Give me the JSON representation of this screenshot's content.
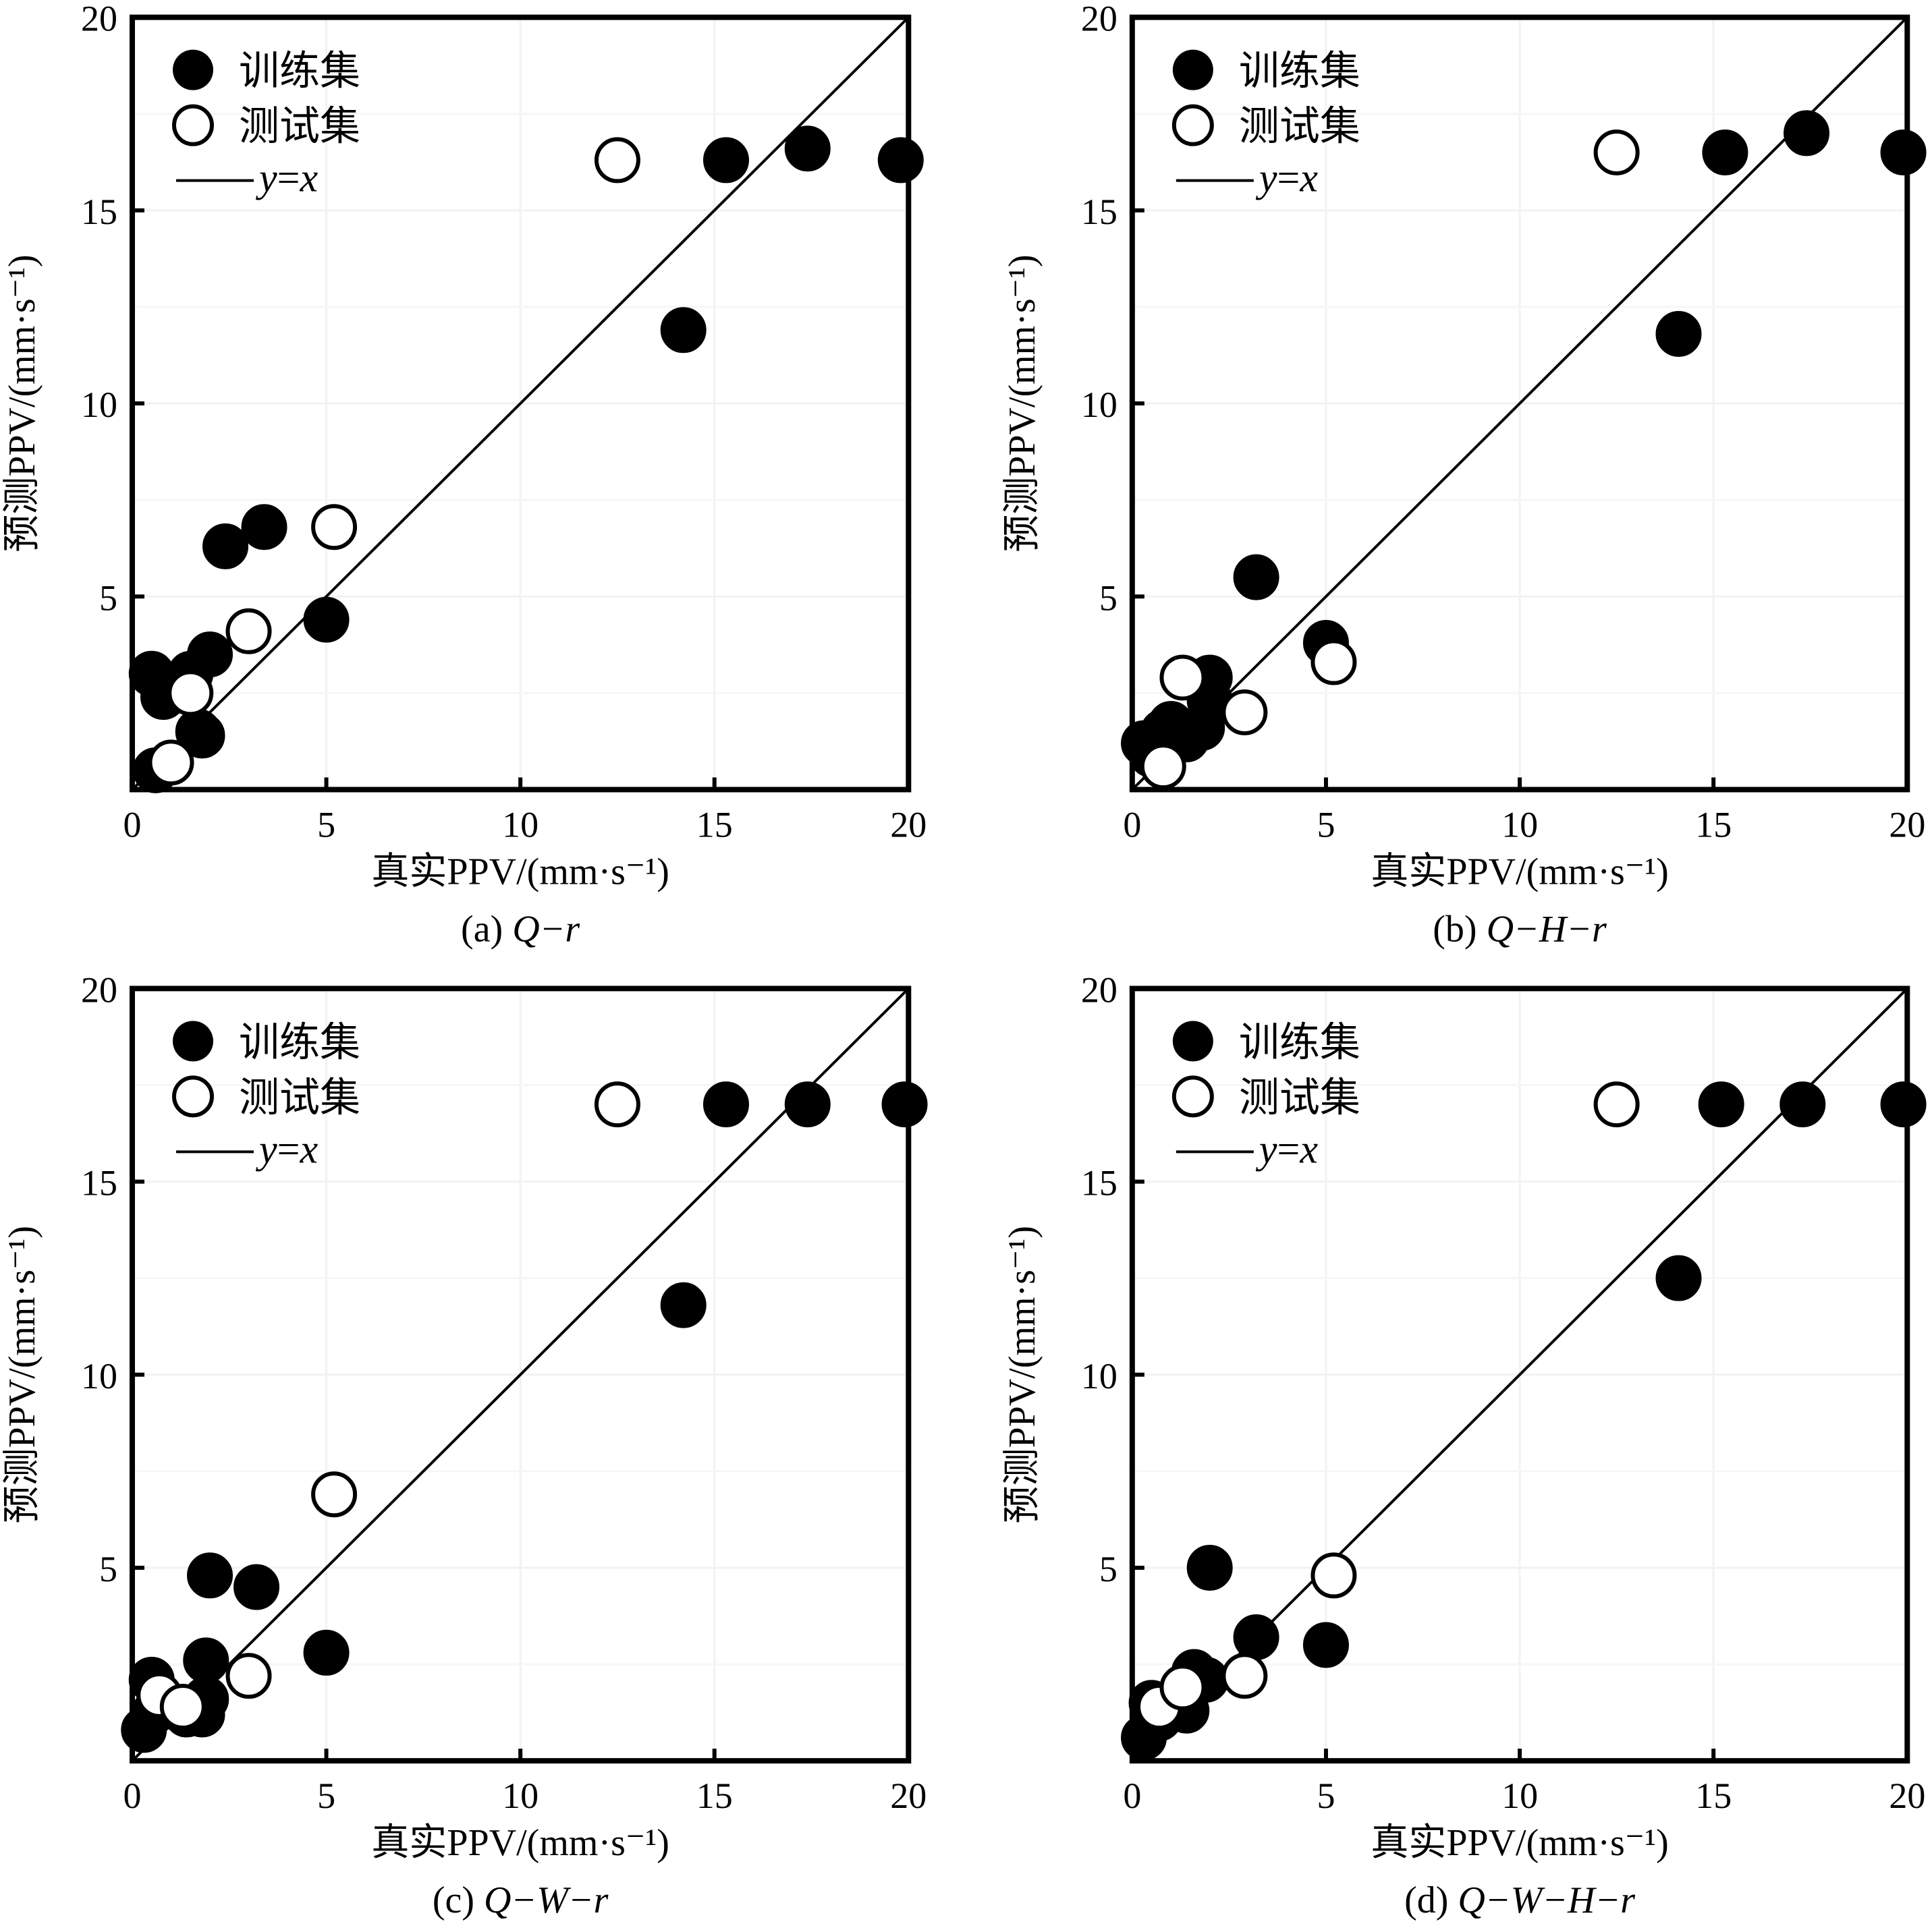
{
  "figure": {
    "legend": {
      "train_label": "训练集",
      "test_label": "测试集",
      "line_label_y": "y",
      "line_label_eq": "=",
      "line_label_x": "x"
    },
    "colors": {
      "train_fill": "#000000",
      "test_fill": "#ffffff",
      "stroke": "#000000"
    }
  },
  "chart_data": [
    {
      "type": "scatter",
      "caption": "(a) Q−r",
      "caption_prefix": "(a) ",
      "caption_italic": "Q−r",
      "xlabel": "真实PPV/(mm·s⁻¹)",
      "ylabel": "预测PPV/(mm·s⁻¹)",
      "xlim": [
        0,
        20
      ],
      "ylim": [
        0,
        20
      ],
      "xticks": [
        "0",
        "5",
        "10",
        "15",
        "20"
      ],
      "yticks": [
        "5",
        "10",
        "15",
        "20"
      ],
      "reference_line": "y=x",
      "legend_position": "top-left",
      "series": [
        {
          "name": "训练集",
          "marker": "filled-circle",
          "points": [
            [
              0.5,
              3.0
            ],
            [
              0.6,
              0.5
            ],
            [
              0.8,
              2.4
            ],
            [
              1.5,
              3.0
            ],
            [
              1.8,
              1.4
            ],
            [
              1.7,
              1.5
            ],
            [
              2.0,
              3.5
            ],
            [
              2.4,
              6.3
            ],
            [
              3.4,
              6.8
            ],
            [
              5.0,
              4.4
            ],
            [
              14.2,
              11.9
            ],
            [
              15.3,
              16.3
            ],
            [
              17.4,
              16.6
            ],
            [
              19.8,
              16.3
            ]
          ]
        },
        {
          "name": "测试集",
          "marker": "open-circle",
          "points": [
            [
              1.0,
              0.7
            ],
            [
              1.5,
              2.5
            ],
            [
              3.0,
              4.1
            ],
            [
              5.2,
              6.8
            ],
            [
              12.5,
              16.3
            ]
          ]
        }
      ]
    },
    {
      "type": "scatter",
      "caption": "(b) Q−H−r",
      "caption_prefix": "(b) ",
      "caption_italic": "Q−H−r",
      "xlabel": "真实PPV/(mm·s⁻¹)",
      "ylabel": "预测PPV/(mm·s⁻¹)",
      "xlim": [
        0,
        20
      ],
      "ylim": [
        0,
        20
      ],
      "xticks": [
        "0",
        "5",
        "10",
        "15",
        "20"
      ],
      "yticks": [
        "5",
        "10",
        "15",
        "20"
      ],
      "reference_line": "y=x",
      "legend_position": "top-left",
      "series": [
        {
          "name": "训练集",
          "marker": "filled-circle",
          "points": [
            [
              0.3,
              1.2
            ],
            [
              0.5,
              0.9
            ],
            [
              0.8,
              1.5
            ],
            [
              1.0,
              1.7
            ],
            [
              1.4,
              1.3
            ],
            [
              1.8,
              1.6
            ],
            [
              2.0,
              2.9
            ],
            [
              2.0,
              2.3
            ],
            [
              3.2,
              5.5
            ],
            [
              5.0,
              3.8
            ],
            [
              14.1,
              11.8
            ],
            [
              15.3,
              16.5
            ],
            [
              17.4,
              17.0
            ],
            [
              19.9,
              16.5
            ]
          ]
        },
        {
          "name": "测试集",
          "marker": "open-circle",
          "points": [
            [
              0.8,
              0.6
            ],
            [
              1.3,
              2.9
            ],
            [
              2.9,
              2.0
            ],
            [
              5.2,
              3.3
            ],
            [
              12.5,
              16.5
            ]
          ]
        }
      ]
    },
    {
      "type": "scatter",
      "caption": "(c) Q−W−r",
      "caption_prefix": "(c) ",
      "caption_italic": "Q−W−r",
      "xlabel": "真实PPV/(mm·s⁻¹)",
      "ylabel": "预测PPV/(mm·s⁻¹)",
      "xlim": [
        0,
        20
      ],
      "ylim": [
        0,
        20
      ],
      "xticks": [
        "0",
        "5",
        "10",
        "15",
        "20"
      ],
      "yticks": [
        "5",
        "10",
        "15",
        "20"
      ],
      "reference_line": "y=x",
      "legend_position": "top-left",
      "series": [
        {
          "name": "训练集",
          "marker": "filled-circle",
          "points": [
            [
              0.3,
              0.8
            ],
            [
              0.5,
              2.1
            ],
            [
              0.6,
              1.3
            ],
            [
              1.4,
              1.2
            ],
            [
              1.8,
              1.2
            ],
            [
              1.9,
              1.6
            ],
            [
              1.9,
              2.6
            ],
            [
              2.0,
              4.8
            ],
            [
              3.2,
              4.5
            ],
            [
              5.0,
              2.8
            ],
            [
              14.2,
              11.8
            ],
            [
              15.3,
              17.0
            ],
            [
              17.4,
              17.0
            ],
            [
              19.9,
              17.0
            ]
          ]
        },
        {
          "name": "测试集",
          "marker": "open-circle",
          "points": [
            [
              0.7,
              1.7
            ],
            [
              1.3,
              1.4
            ],
            [
              3.0,
              2.2
            ],
            [
              5.2,
              6.9
            ],
            [
              12.5,
              17.0
            ]
          ]
        }
      ]
    },
    {
      "type": "scatter",
      "caption": "(d) Q−W−H−r",
      "caption_prefix": "(d) ",
      "caption_italic": "Q−W−H−r",
      "xlabel": "真实PPV/(mm·s⁻¹)",
      "ylabel": "预测PPV/(mm·s⁻¹)",
      "xlim": [
        0,
        20
      ],
      "ylim": [
        0,
        20
      ],
      "xticks": [
        "0",
        "5",
        "10",
        "15",
        "20"
      ],
      "yticks": [
        "5",
        "10",
        "15",
        "20"
      ],
      "reference_line": "y=x",
      "legend_position": "top-left",
      "series": [
        {
          "name": "训练集",
          "marker": "filled-circle",
          "points": [
            [
              0.3,
              0.6
            ],
            [
              0.5,
              1.5
            ],
            [
              0.7,
              1.1
            ],
            [
              1.4,
              1.3
            ],
            [
              1.6,
              2.3
            ],
            [
              1.9,
              2.1
            ],
            [
              2.0,
              5.0
            ],
            [
              3.2,
              3.2
            ],
            [
              5.0,
              3.0
            ],
            [
              14.1,
              12.5
            ],
            [
              15.2,
              17.0
            ],
            [
              17.3,
              17.0
            ],
            [
              19.9,
              17.0
            ]
          ]
        },
        {
          "name": "测试集",
          "marker": "open-circle",
          "points": [
            [
              0.7,
              1.4
            ],
            [
              1.3,
              1.9
            ],
            [
              2.9,
              2.2
            ],
            [
              5.2,
              4.8
            ],
            [
              12.5,
              17.0
            ]
          ]
        }
      ]
    }
  ]
}
